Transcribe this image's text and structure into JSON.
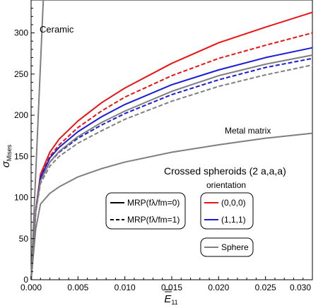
{
  "chart_data": {
    "type": "line",
    "title": "",
    "xlabel": "Ē₁₁",
    "ylabel": "σMises",
    "xlim": [
      0.0,
      0.03
    ],
    "ylim": [
      0,
      340
    ],
    "x_ticks": [
      "0.000",
      "0.005",
      "0.010",
      "0.015",
      "0.020",
      "0.025",
      "0.030"
    ],
    "y_ticks": [
      "0",
      "50",
      "100",
      "150",
      "200",
      "250",
      "300"
    ],
    "grid": false,
    "legend_placement": "lower-right",
    "annotations": {
      "ceramic": "Ceramic",
      "metal_matrix": "Metal matrix",
      "legend_title": "Crossed spheroids (2 a,a,a)",
      "orientation": "orientation"
    },
    "legend_linestyle": {
      "solid": "MRP(fλ/fm=0)",
      "dashed": "MRP(fλ/fm=1)"
    },
    "legend_colors": {
      "red": "(0,0,0)",
      "blue": "(1,1,1)",
      "sphere": "Sphere"
    },
    "series": [
      {
        "name": "Ceramic",
        "color": "#7f7f7f",
        "dash": "solid",
        "x": [
          0.0,
          0.0013
        ],
        "y": [
          0,
          340
        ]
      },
      {
        "name": "Metal matrix",
        "color": "#7f7f7f",
        "dash": "solid",
        "x": [
          0.0,
          0.0005,
          0.001,
          0.002,
          0.003,
          0.005,
          0.0075,
          0.01,
          0.015,
          0.02,
          0.025,
          0.03
        ],
        "y": [
          0,
          62,
          92,
          105,
          113,
          125,
          135,
          143,
          155,
          164,
          172,
          178
        ]
      },
      {
        "name": "(0,0,0)",
        "color": "#ee1111",
        "dash": "solid",
        "x": [
          0.0,
          0.0005,
          0.001,
          0.002,
          0.003,
          0.005,
          0.0075,
          0.01,
          0.015,
          0.02,
          0.025,
          0.03
        ],
        "y": [
          0,
          85,
          128,
          155,
          171,
          193,
          215,
          233,
          263,
          288,
          307,
          325
        ]
      },
      {
        "name": "(0,0,0)",
        "color": "#ee1111",
        "dash": "dashed",
        "x": [
          0.0,
          0.0005,
          0.001,
          0.002,
          0.003,
          0.005,
          0.0075,
          0.01,
          0.015,
          0.02,
          0.025,
          0.03
        ],
        "y": [
          0,
          84,
          125,
          150,
          164,
          185,
          205,
          222,
          248,
          269,
          285,
          300
        ]
      },
      {
        "name": "(1,1,1)",
        "color": "#1a1adb",
        "dash": "solid",
        "x": [
          0.0,
          0.0005,
          0.001,
          0.002,
          0.003,
          0.005,
          0.0075,
          0.01,
          0.015,
          0.02,
          0.025,
          0.03
        ],
        "y": [
          0,
          84,
          124,
          148,
          161,
          180,
          198,
          213,
          237,
          255,
          270,
          282
        ]
      },
      {
        "name": "(1,1,1)",
        "color": "#1a1adb",
        "dash": "dashed",
        "x": [
          0.0,
          0.0005,
          0.001,
          0.002,
          0.003,
          0.005,
          0.0075,
          0.01,
          0.015,
          0.02,
          0.025,
          0.03
        ],
        "y": [
          0,
          83,
          121,
          143,
          155,
          172,
          188,
          202,
          225,
          243,
          258,
          269
        ]
      },
      {
        "name": "Sphere",
        "color": "#7f7f7f",
        "dash": "solid",
        "x": [
          0.0,
          0.0005,
          0.001,
          0.002,
          0.003,
          0.005,
          0.0075,
          0.01,
          0.015,
          0.02,
          0.025,
          0.03
        ],
        "y": [
          0,
          83,
          120,
          143,
          156,
          174,
          191,
          205,
          229,
          248,
          262,
          273
        ]
      },
      {
        "name": "Sphere",
        "color": "#7f7f7f",
        "dash": "dashed",
        "x": [
          0.0,
          0.0005,
          0.001,
          0.002,
          0.003,
          0.005,
          0.0075,
          0.01,
          0.015,
          0.02,
          0.025,
          0.03
        ],
        "y": [
          0,
          82,
          117,
          138,
          150,
          166,
          181,
          195,
          217,
          235,
          249,
          261
        ]
      }
    ]
  }
}
